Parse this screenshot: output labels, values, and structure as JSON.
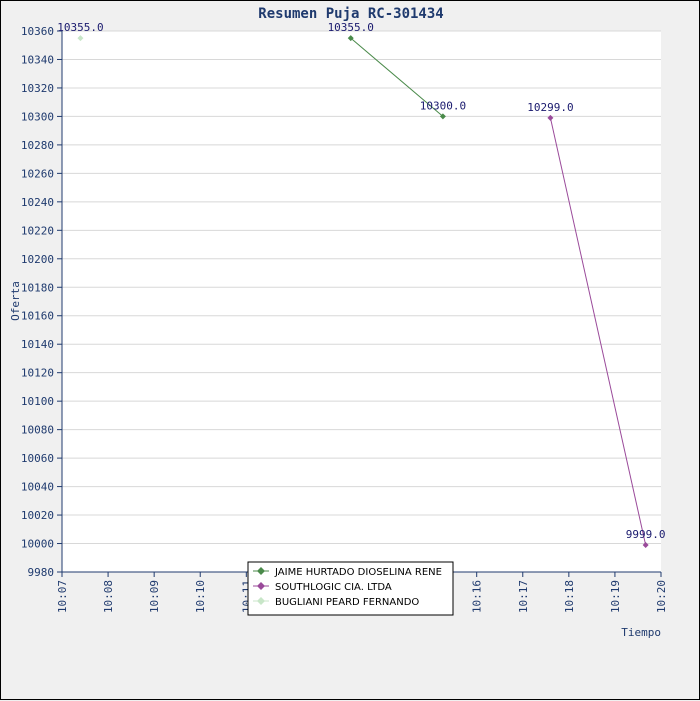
{
  "chart_data": {
    "type": "line",
    "title": "Resumen Puja RC-301434",
    "xlabel": "Tiempo",
    "ylabel": "Oferta",
    "ylim": [
      9980,
      10360
    ],
    "yticks": [
      9980,
      10000,
      10020,
      10040,
      10060,
      10080,
      10100,
      10120,
      10140,
      10160,
      10180,
      10200,
      10220,
      10240,
      10260,
      10280,
      10300,
      10320,
      10340,
      10360
    ],
    "xticks": [
      "10:07",
      "10:08",
      "10:09",
      "10:10",
      "10:11",
      "10:12",
      "10:13",
      "10:14",
      "10:15",
      "10:16",
      "10:17",
      "10:18",
      "10:19",
      "10:20"
    ],
    "grid": true,
    "legend_position": "bottom-center",
    "series": [
      {
        "name": "JAIME HURTADO DIOSELINA RENE",
        "color": "#4a8a4a",
        "points": [
          {
            "x": "10:13:16",
            "y": 10355.0,
            "label": "10355.0"
          },
          {
            "x": "10:15:16",
            "y": 10300.0,
            "label": "10300.0"
          }
        ]
      },
      {
        "name": "SOUTHLOGIC CIA. LTDA",
        "color": "#9a4a9a",
        "points": [
          {
            "x": "10:17:36",
            "y": 10299.0,
            "label": "10299.0"
          },
          {
            "x": "10:19:40",
            "y": 9999.0,
            "label": "9999.0"
          }
        ]
      },
      {
        "name": "BUGLIANI PEARD FERNANDO",
        "color": "#c8e6c8",
        "points": [
          {
            "x": "10:07:24",
            "y": 10355.0,
            "label": "10355.0"
          }
        ]
      }
    ]
  }
}
